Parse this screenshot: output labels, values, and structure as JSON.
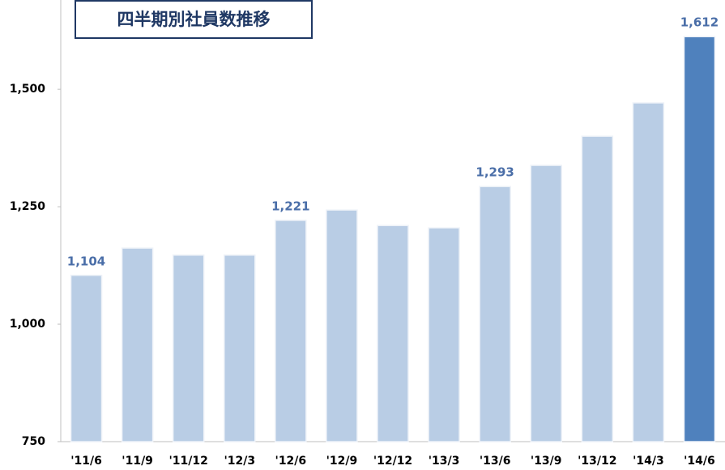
{
  "chart_data": {
    "type": "bar",
    "title": "四半期別社員数推移",
    "categories": [
      "'11/6",
      "'11/9",
      "'11/12",
      "'12/3",
      "'12/6",
      "'12/9",
      "'12/12",
      "'13/3",
      "'13/6",
      "'13/9",
      "'13/12",
      "'14/3",
      "'14/6"
    ],
    "values": [
      1104,
      1162,
      1147,
      1147,
      1221,
      1243,
      1210,
      1205,
      1293,
      1338,
      1400,
      1471,
      1612
    ],
    "value_labels": [
      "1,104",
      null,
      null,
      null,
      "1,221",
      null,
      null,
      null,
      "1,293",
      null,
      null,
      null,
      "1,612"
    ],
    "colors": [
      "#b9cde5",
      "#b9cde5",
      "#b9cde5",
      "#b9cde5",
      "#b9cde5",
      "#b9cde5",
      "#b9cde5",
      "#b9cde5",
      "#b9cde5",
      "#b9cde5",
      "#b9cde5",
      "#b9cde5",
      "#4f81bd"
    ],
    "ylim": [
      750,
      1690
    ],
    "yticks": [
      {
        "value": 750,
        "label": "750"
      },
      {
        "value": 1000,
        "label": "1,000"
      },
      {
        "value": 1250,
        "label": "1,250"
      },
      {
        "value": 1500,
        "label": "1,500"
      }
    ],
    "grid": false
  }
}
